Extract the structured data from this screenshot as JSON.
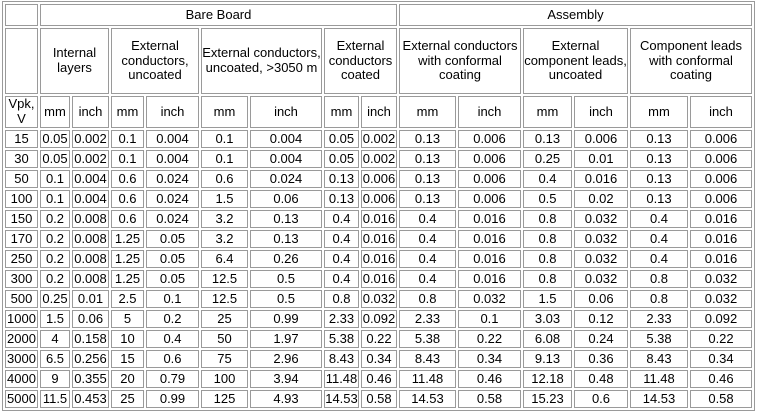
{
  "table": {
    "title_semantic": "electrical-conductor-spacing-table",
    "sections": [
      {
        "label": "Bare Board",
        "columns": 8
      },
      {
        "label": "Assembly",
        "columns": 6
      }
    ],
    "voltage_header": "Vpk, V",
    "unit_labels": {
      "mm": "mm",
      "inch": "inch"
    },
    "column_groups": [
      {
        "label": "Internal layers"
      },
      {
        "label": "External conductors, uncoated"
      },
      {
        "label": "External conductors, uncoated, >3050 m"
      },
      {
        "label": "External conductors coated"
      },
      {
        "label": "External conductors with conformal coating"
      },
      {
        "label": "External component leads, uncoated"
      },
      {
        "label": "Component leads with conformal coating"
      }
    ],
    "rows": [
      {
        "voltage": "15",
        "values": [
          "0.05",
          "0.002",
          "0.1",
          "0.004",
          "0.1",
          "0.004",
          "0.05",
          "0.002",
          "0.13",
          "0.006",
          "0.13",
          "0.006",
          "0.13",
          "0.006"
        ]
      },
      {
        "voltage": "30",
        "values": [
          "0.05",
          "0.002",
          "0.1",
          "0.004",
          "0.1",
          "0.004",
          "0.05",
          "0.002",
          "0.13",
          "0.006",
          "0.25",
          "0.01",
          "0.13",
          "0.006"
        ]
      },
      {
        "voltage": "50",
        "values": [
          "0.1",
          "0.004",
          "0.6",
          "0.024",
          "0.6",
          "0.024",
          "0.13",
          "0.006",
          "0.13",
          "0.006",
          "0.4",
          "0.016",
          "0.13",
          "0.006"
        ]
      },
      {
        "voltage": "100",
        "values": [
          "0.1",
          "0.004",
          "0.6",
          "0.024",
          "1.5",
          "0.06",
          "0.13",
          "0.006",
          "0.13",
          "0.006",
          "0.5",
          "0.02",
          "0.13",
          "0.006"
        ]
      },
      {
        "voltage": "150",
        "values": [
          "0.2",
          "0.008",
          "0.6",
          "0.024",
          "3.2",
          "0.13",
          "0.4",
          "0.016",
          "0.4",
          "0.016",
          "0.8",
          "0.032",
          "0.4",
          "0.016"
        ]
      },
      {
        "voltage": "170",
        "values": [
          "0.2",
          "0.008",
          "1.25",
          "0.05",
          "3.2",
          "0.13",
          "0.4",
          "0.016",
          "0.4",
          "0.016",
          "0.8",
          "0.032",
          "0.4",
          "0.016"
        ]
      },
      {
        "voltage": "250",
        "values": [
          "0.2",
          "0.008",
          "1.25",
          "0.05",
          "6.4",
          "0.26",
          "0.4",
          "0.016",
          "0.4",
          "0.016",
          "0.8",
          "0.032",
          "0.4",
          "0.016"
        ]
      },
      {
        "voltage": "300",
        "values": [
          "0.2",
          "0.008",
          "1.25",
          "0.05",
          "12.5",
          "0.5",
          "0.4",
          "0.016",
          "0.4",
          "0.016",
          "0.8",
          "0.032",
          "0.8",
          "0.032"
        ]
      },
      {
        "voltage": "500",
        "values": [
          "0.25",
          "0.01",
          "2.5",
          "0.1",
          "12.5",
          "0.5",
          "0.8",
          "0.032",
          "0.8",
          "0.032",
          "1.5",
          "0.06",
          "0.8",
          "0.032"
        ]
      },
      {
        "voltage": "1000",
        "values": [
          "1.5",
          "0.06",
          "5",
          "0.2",
          "25",
          "0.99",
          "2.33",
          "0.092",
          "2.33",
          "0.1",
          "3.03",
          "0.12",
          "2.33",
          "0.092"
        ]
      },
      {
        "voltage": "2000",
        "values": [
          "4",
          "0.158",
          "10",
          "0.4",
          "50",
          "1.97",
          "5.38",
          "0.22",
          "5.38",
          "0.22",
          "6.08",
          "0.24",
          "5.38",
          "0.22"
        ]
      },
      {
        "voltage": "3000",
        "values": [
          "6.5",
          "0.256",
          "15",
          "0.6",
          "75",
          "2.96",
          "8.43",
          "0.34",
          "8.43",
          "0.34",
          "9.13",
          "0.36",
          "8.43",
          "0.34"
        ]
      },
      {
        "voltage": "4000",
        "values": [
          "9",
          "0.355",
          "20",
          "0.79",
          "100",
          "3.94",
          "11.48",
          "0.46",
          "11.48",
          "0.46",
          "12.18",
          "0.48",
          "11.48",
          "0.46"
        ]
      },
      {
        "voltage": "5000",
        "values": [
          "11.5",
          "0.453",
          "25",
          "0.99",
          "125",
          "4.93",
          "14.53",
          "0.58",
          "14.53",
          "0.58",
          "15.23",
          "0.6",
          "14.53",
          "0.58"
        ]
      }
    ],
    "colors": {
      "grid": "#9a9a9a",
      "text": "#000000",
      "background": "#ffffff"
    }
  }
}
